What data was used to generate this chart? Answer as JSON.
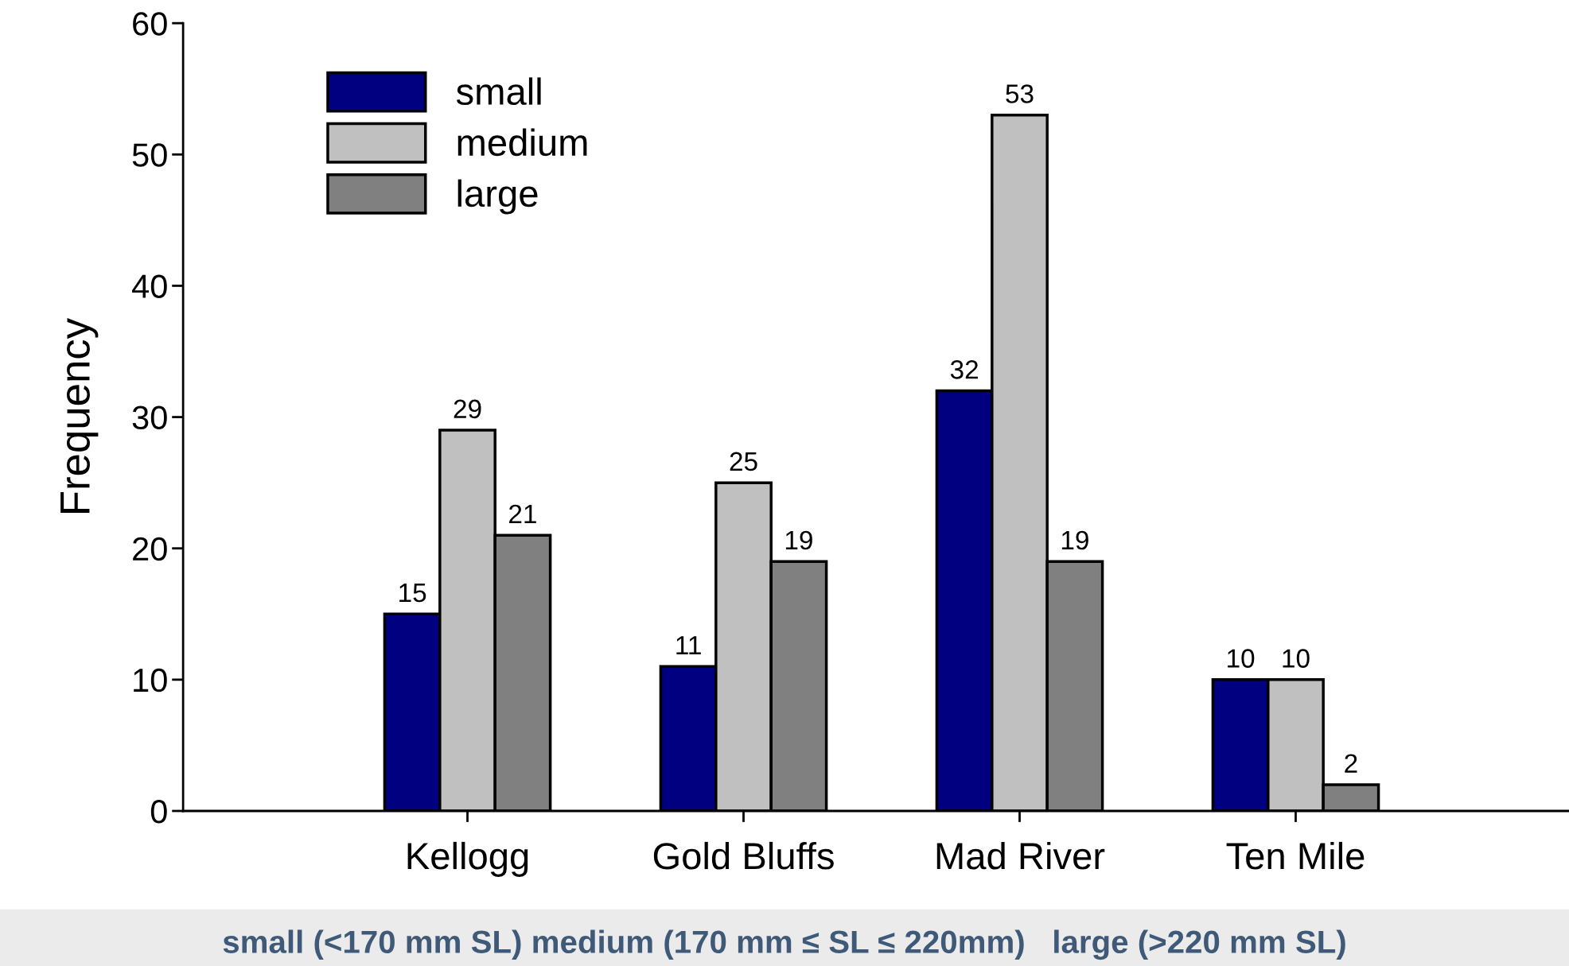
{
  "chart_data": {
    "type": "bar",
    "ylabel": "Frequency",
    "categories": [
      "Kellogg",
      "Gold Bluffs",
      "Mad River",
      "Ten Mile"
    ],
    "series": [
      {
        "name": "small",
        "color": "#000080",
        "values": [
          15,
          11,
          32,
          10
        ]
      },
      {
        "name": "medium",
        "color": "#c0c0c0",
        "values": [
          29,
          25,
          53,
          10
        ]
      },
      {
        "name": "large",
        "color": "#808080",
        "values": [
          21,
          19,
          19,
          2
        ]
      }
    ],
    "ylim": [
      0,
      60
    ],
    "yticks": [
      0,
      10,
      20,
      30,
      40,
      50,
      60
    ],
    "data_labels": true,
    "grid": false,
    "legend": "top left",
    "annotations": [
      "small (<170 mm SL) medium (170 mm ≤ SL ≤ 220mm)   large (>220 mm SL)"
    ]
  }
}
